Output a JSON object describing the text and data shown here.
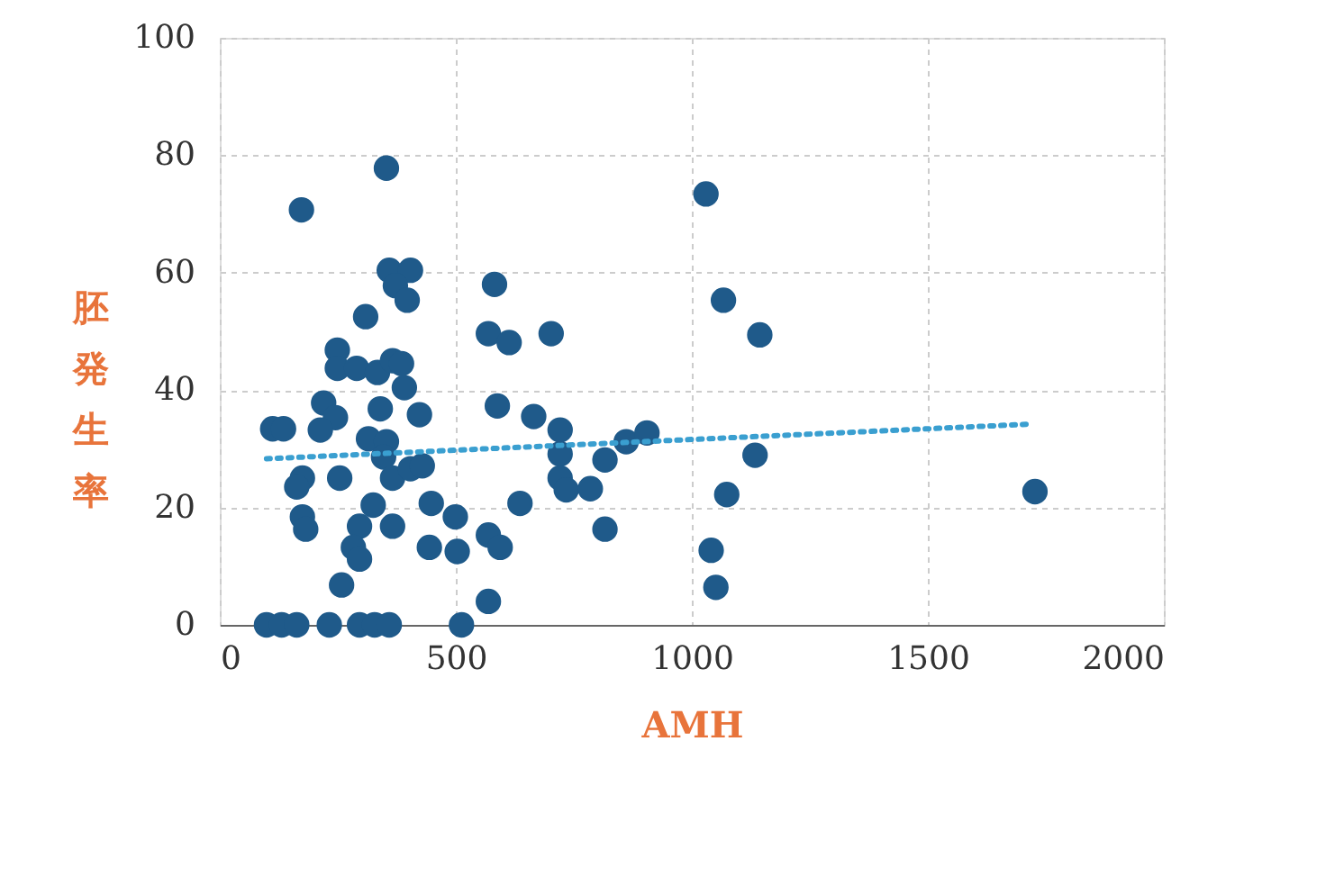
{
  "chart_data": {
    "type": "scatter",
    "xlabel": "AMH",
    "ylabel": "胚発生率",
    "xlim": [
      0,
      2000
    ],
    "xticks": [
      0,
      500,
      1000,
      1500,
      2000
    ],
    "ylim": [
      0,
      100
    ],
    "yticks": [
      0,
      20,
      40,
      60,
      80,
      100
    ],
    "grid": true,
    "series": [
      {
        "color": "#1f5a8a",
        "marker": "circle",
        "x": [
          99,
          131,
          163,
          232,
          296,
          328,
          359,
          512,
          353,
          173,
          359,
          404,
          372,
          397,
          309,
          249,
          249,
          290,
          334,
          366,
          385,
          391,
          220,
          245,
          213,
          112,
          135,
          340,
          423,
          315,
          353,
          347,
          366,
          404,
          429,
          175,
          163,
          254,
          175,
          182,
          325,
          366,
          296,
          283,
          296,
          258,
          448,
          499,
          444,
          503,
          569,
          594,
          569,
          636,
          588,
          665,
          582,
          569,
          613,
          702,
          721,
          721,
          721,
          734,
          785,
          816,
          861,
          905,
          816,
          1030,
          1067,
          1144,
          1134,
          1074,
          1041,
          1051,
          1727
        ],
        "values": [
          0,
          0,
          0,
          0,
          0,
          0,
          0,
          0,
          77.8,
          70.7,
          60.4,
          60.4,
          57.8,
          55.3,
          52.5,
          46.8,
          43.7,
          43.7,
          43,
          45,
          44.5,
          40.4,
          37.8,
          35.3,
          33.2,
          33.4,
          33.4,
          36.8,
          35.8,
          31.7,
          31.2,
          28.6,
          25,
          26.6,
          27.1,
          25,
          23.5,
          25,
          18.4,
          16.3,
          20.4,
          16.8,
          16.8,
          13.2,
          11.2,
          6.8,
          20.7,
          18.4,
          13.2,
          12.5,
          15.3,
          13.2,
          4,
          20.7,
          37.3,
          35.5,
          58,
          49.6,
          48.1,
          49.6,
          33.2,
          29.1,
          25,
          23,
          23.2,
          28.1,
          31.2,
          32.7,
          16.3,
          73.4,
          55.3,
          49.4,
          28.9,
          22.2,
          12.7,
          6.4,
          22.7
        ]
      },
      {
        "type": "line",
        "color": "#3a9fd0",
        "line_style": "dotted",
        "marker": "none",
        "x": [
          99,
          1718
        ],
        "values": [
          28.3,
          34.2
        ]
      }
    ]
  }
}
